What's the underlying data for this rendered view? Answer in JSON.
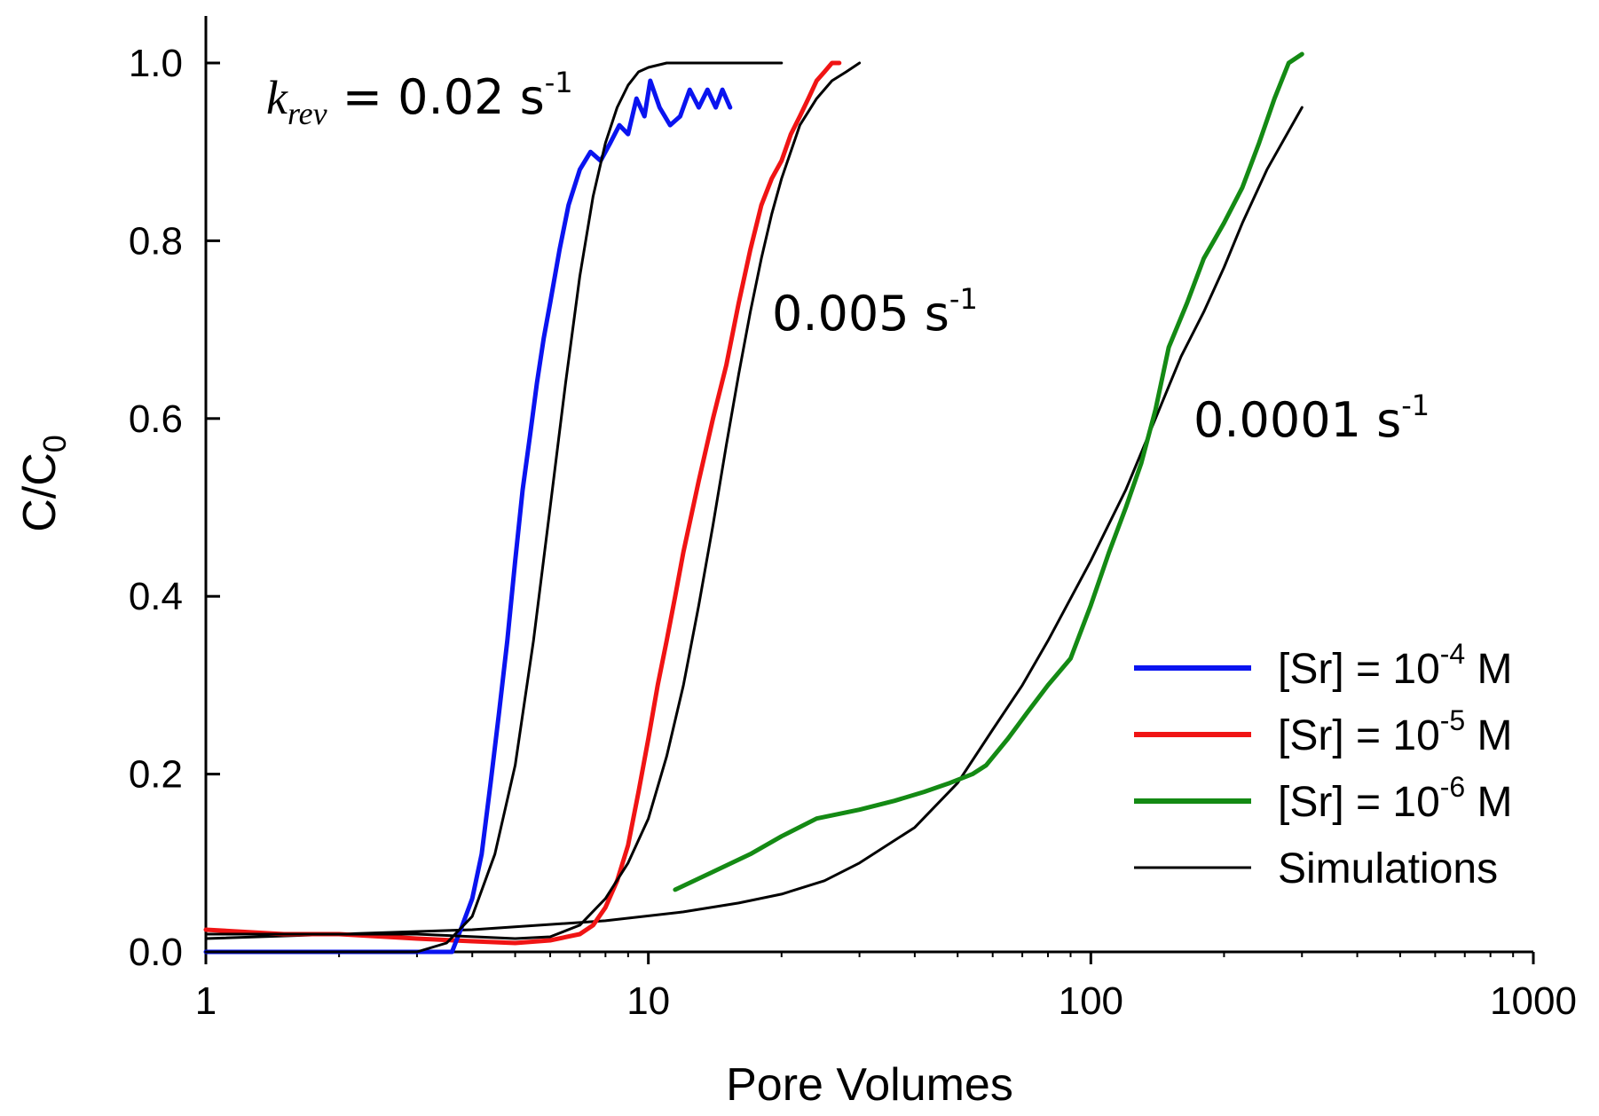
{
  "chart_data": {
    "type": "line",
    "title": "",
    "xlabel": "Pore Volumes",
    "ylabel": "C/C",
    "ylabel_sub": "0",
    "xscale": "log",
    "xlim": [
      1,
      1000
    ],
    "ylim": [
      0,
      1.0
    ],
    "grid": false,
    "x_ticks": [
      1,
      10,
      100,
      1000
    ],
    "x_tick_labels": [
      "1",
      "10",
      "100",
      "1000"
    ],
    "y_ticks": [
      0,
      0.2,
      0.4,
      0.6,
      0.8,
      1.0
    ],
    "y_tick_labels": [
      "0.0",
      "0.2",
      "0.4",
      "0.6",
      "0.8",
      "1.0"
    ],
    "legend_position": "bottom-right",
    "legend": [
      {
        "series": "sr4",
        "prefix": "[Sr] = 10",
        "exp": "-4",
        "suffix": " M",
        "color": "#0a14f0"
      },
      {
        "series": "sr5",
        "prefix": "[Sr] = 10",
        "exp": "-5",
        "suffix": " M",
        "color": "#f01414"
      },
      {
        "series": "sr6",
        "prefix": "[Sr] = 10",
        "exp": "-6",
        "suffix": " M",
        "color": "#148a14"
      },
      {
        "series": "sim",
        "prefix": "Simulations",
        "exp": "",
        "suffix": "",
        "color": "#000000"
      }
    ],
    "annotations": [
      {
        "k_label": "k",
        "k_sub": "rev",
        "text": " = 0.02 s",
        "exp": "-1",
        "at": [
          2.3,
          0.96
        ]
      },
      {
        "k_label": "",
        "k_sub": "",
        "text": "0.005 s",
        "exp": "-1",
        "at": [
          29,
          0.72
        ]
      },
      {
        "k_label": "",
        "k_sub": "",
        "text": "0.0001 s",
        "exp": "-1",
        "at": [
          170,
          0.59
        ]
      }
    ],
    "series": [
      {
        "name": "[Sr] = 10^-4 M",
        "key": "sr4",
        "color": "#0a14f0",
        "width": 5,
        "x": [
          1,
          2,
          3,
          3.6,
          3.8,
          4.0,
          4.2,
          4.4,
          4.6,
          4.8,
          5.0,
          5.2,
          5.4,
          5.6,
          5.8,
          6.0,
          6.3,
          6.6,
          7.0,
          7.4,
          7.8,
          8.2,
          8.6,
          9.0,
          9.4,
          9.8,
          10.1,
          10.6,
          11.2,
          11.8,
          12.4,
          13.0,
          13.6,
          14.2,
          14.7,
          15.3
        ],
        "y": [
          0,
          0,
          0,
          0,
          0.03,
          0.06,
          0.11,
          0.19,
          0.27,
          0.35,
          0.44,
          0.52,
          0.58,
          0.64,
          0.69,
          0.73,
          0.79,
          0.84,
          0.88,
          0.9,
          0.89,
          0.91,
          0.93,
          0.92,
          0.96,
          0.94,
          0.98,
          0.95,
          0.93,
          0.94,
          0.97,
          0.95,
          0.97,
          0.95,
          0.97,
          0.95
        ]
      },
      {
        "name": "[Sr] = 10^-5 M",
        "key": "sr5",
        "color": "#f01414",
        "width": 5,
        "x": [
          1,
          1.5,
          2,
          3,
          4,
          5,
          6,
          7,
          7.5,
          8,
          8.5,
          9,
          9.5,
          10,
          10.5,
          11,
          11.5,
          12,
          13,
          14,
          15,
          16,
          17,
          18,
          19,
          20,
          21,
          22,
          23,
          24,
          25,
          26,
          27
        ],
        "y": [
          0.025,
          0.02,
          0.02,
          0.015,
          0.012,
          0.01,
          0.013,
          0.02,
          0.03,
          0.05,
          0.08,
          0.12,
          0.18,
          0.24,
          0.3,
          0.35,
          0.4,
          0.45,
          0.53,
          0.6,
          0.66,
          0.73,
          0.79,
          0.84,
          0.87,
          0.89,
          0.92,
          0.94,
          0.96,
          0.98,
          0.99,
          1.0,
          1.0
        ]
      },
      {
        "name": "[Sr] = 10^-6 M",
        "key": "sr6",
        "color": "#148a14",
        "width": 5,
        "x": [
          11.5,
          14,
          17,
          20,
          24,
          30,
          36,
          42,
          48,
          54,
          58,
          65,
          72,
          80,
          90,
          100,
          110,
          120,
          130,
          140,
          150,
          165,
          180,
          200,
          220,
          240,
          260,
          280,
          300
        ],
        "y": [
          0.07,
          0.09,
          0.11,
          0.13,
          0.15,
          0.16,
          0.17,
          0.18,
          0.19,
          0.2,
          0.21,
          0.24,
          0.27,
          0.3,
          0.33,
          0.39,
          0.45,
          0.5,
          0.55,
          0.61,
          0.68,
          0.73,
          0.78,
          0.82,
          0.86,
          0.91,
          0.96,
          1.0,
          1.01
        ]
      },
      {
        "name": "Simulation 0.02 s-1",
        "key": "sim1",
        "color": "#000000",
        "width": 3,
        "x": [
          1,
          2,
          3,
          3.5,
          4,
          4.5,
          5,
          5.5,
          6,
          6.5,
          7,
          7.5,
          8,
          8.5,
          9,
          9.5,
          10,
          11,
          12,
          14,
          17,
          20
        ],
        "y": [
          0,
          0,
          0,
          0.01,
          0.04,
          0.11,
          0.21,
          0.35,
          0.5,
          0.64,
          0.76,
          0.85,
          0.91,
          0.95,
          0.975,
          0.99,
          0.995,
          1.0,
          1.0,
          1.0,
          1.0,
          1.0
        ]
      },
      {
        "name": "Simulation 0.005 s-1",
        "key": "sim2",
        "color": "#000000",
        "width": 3,
        "x": [
          1,
          3,
          5,
          6,
          7,
          8,
          9,
          10,
          11,
          12,
          13,
          14,
          15,
          16,
          17,
          18,
          19,
          20,
          22,
          24,
          26,
          28,
          30
        ],
        "y": [
          0.02,
          0.02,
          0.015,
          0.017,
          0.03,
          0.06,
          0.1,
          0.15,
          0.22,
          0.3,
          0.39,
          0.48,
          0.57,
          0.65,
          0.72,
          0.78,
          0.83,
          0.87,
          0.93,
          0.96,
          0.98,
          0.99,
          1.0
        ]
      },
      {
        "name": "Simulation 0.0001 s-1",
        "key": "sim3",
        "color": "#000000",
        "width": 3,
        "x": [
          1,
          2,
          4,
          8,
          12,
          16,
          20,
          25,
          30,
          40,
          50,
          60,
          70,
          80,
          100,
          120,
          140,
          160,
          180,
          200,
          220,
          250,
          300
        ],
        "y": [
          0.015,
          0.02,
          0.025,
          0.035,
          0.045,
          0.055,
          0.065,
          0.08,
          0.1,
          0.14,
          0.19,
          0.25,
          0.3,
          0.35,
          0.44,
          0.52,
          0.6,
          0.67,
          0.72,
          0.77,
          0.82,
          0.88,
          0.95
        ]
      }
    ]
  }
}
